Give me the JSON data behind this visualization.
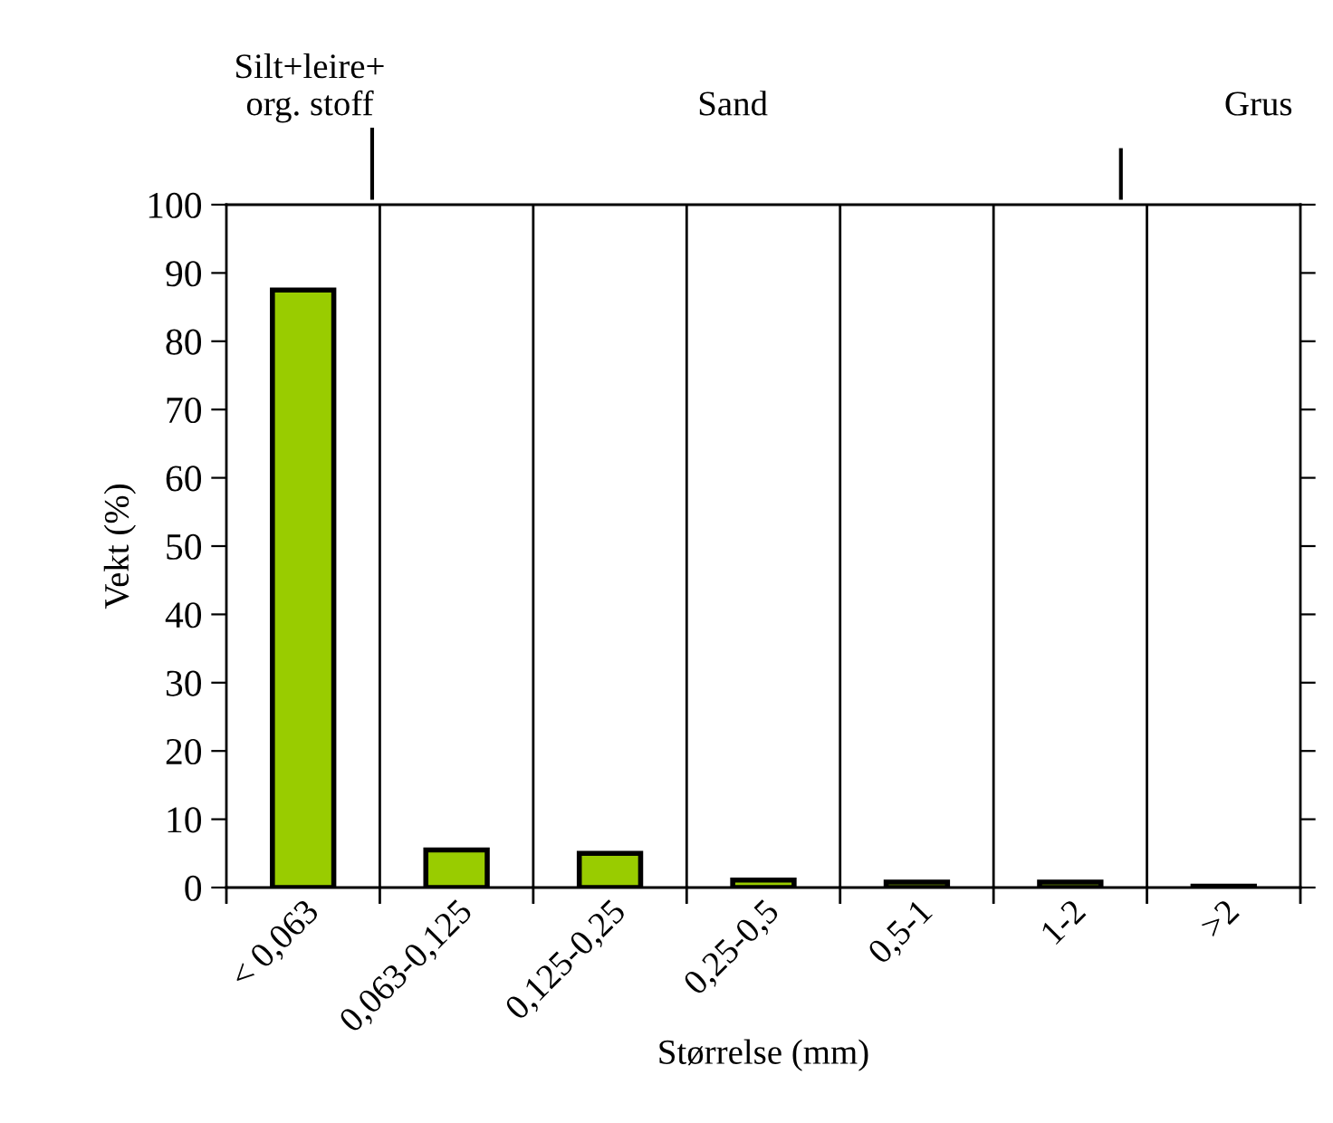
{
  "chart_data": {
    "type": "bar",
    "xlabel": "Størrelse (mm)",
    "ylabel": "Vekt (%)",
    "categories": [
      "< 0,063",
      "0,063-0,125",
      "0,125-0,25",
      "0,25-0,5",
      "0,5-1",
      "1-2",
      ">2"
    ],
    "values": [
      87.5,
      5.5,
      5.0,
      1.1,
      0.8,
      0.8,
      0.2
    ],
    "color": "#99cc00",
    "ylim": [
      0,
      100
    ],
    "yticks": [
      0,
      10,
      20,
      30,
      40,
      50,
      60,
      70,
      80,
      90,
      100
    ],
    "grid": "x",
    "annotations": [
      "Silt+leire+\norg. stoff",
      "Sand",
      "Grus"
    ]
  }
}
